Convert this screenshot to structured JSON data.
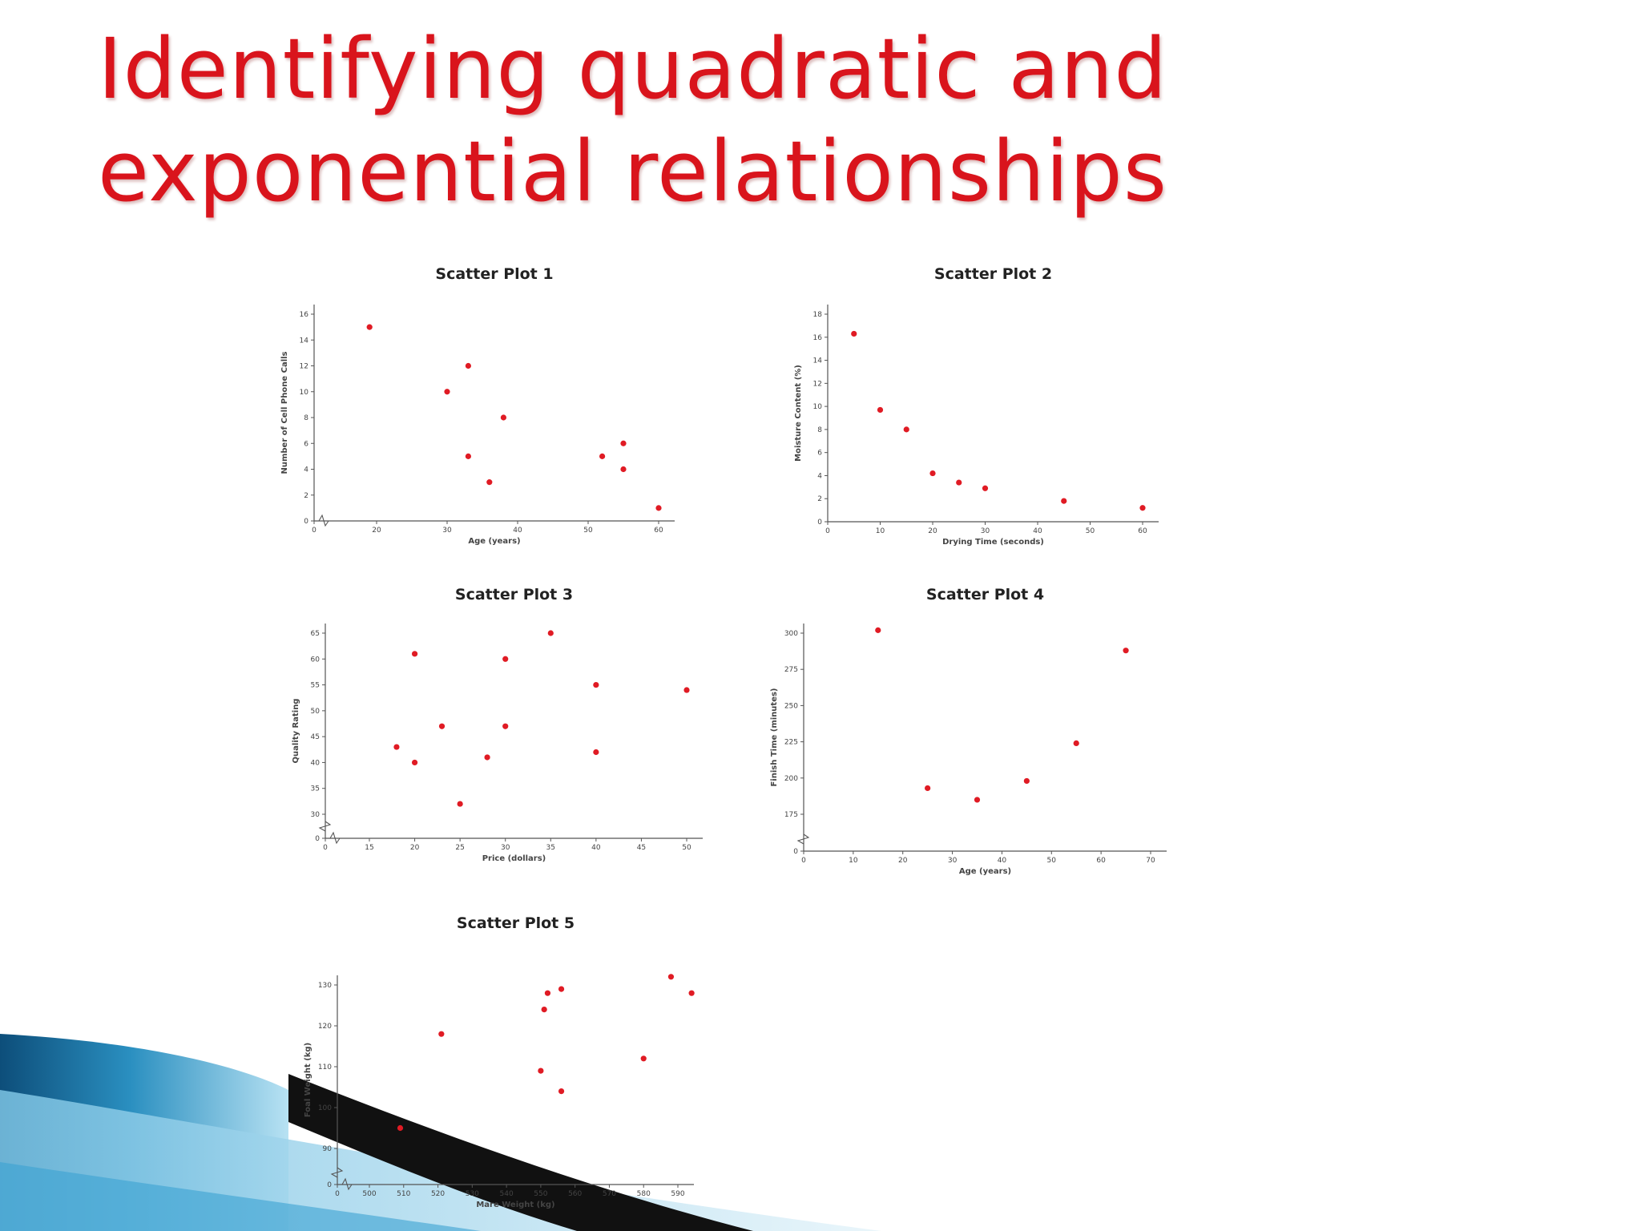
{
  "slide": {
    "title_line1": "Identifying quadratic and",
    "title_line2": "exponential relationships",
    "title_color": "#d9141c",
    "point_color": "#e01b24"
  },
  "chart_data": [
    {
      "type": "scatter",
      "title": "Scatter Plot 1",
      "xlabel": "Age (years)",
      "ylabel": "Number of Cell Phone Calls",
      "xlim": [
        0,
        60
      ],
      "ylim": [
        0,
        16
      ],
      "xticks": [
        0,
        20,
        30,
        40,
        50,
        60
      ],
      "yticks": [
        0,
        2,
        4,
        6,
        8,
        10,
        12,
        14,
        16
      ],
      "axis_break_x": true,
      "x": [
        19,
        30,
        33,
        33,
        36,
        38,
        52,
        55,
        55,
        60
      ],
      "y": [
        15,
        10,
        12,
        5,
        3,
        8,
        5,
        6,
        4,
        1
      ]
    },
    {
      "type": "scatter",
      "title": "Scatter Plot 2",
      "xlabel": "Drying Time (seconds)",
      "ylabel": "Moisture Content (%)",
      "xlim": [
        0,
        60
      ],
      "ylim": [
        0,
        18
      ],
      "xticks": [
        0,
        10,
        20,
        30,
        40,
        50,
        60
      ],
      "yticks": [
        0,
        2,
        4,
        6,
        8,
        10,
        12,
        14,
        16,
        18
      ],
      "axis_break_x": false,
      "x": [
        5,
        10,
        15,
        20,
        25,
        30,
        45,
        60
      ],
      "y": [
        16.3,
        9.7,
        8,
        4.2,
        3.4,
        2.9,
        1.8,
        1.2
      ]
    },
    {
      "type": "scatter",
      "title": "Scatter Plot 3",
      "xlabel": "Price (dollars)",
      "ylabel": "Quality Rating",
      "xlim": [
        10,
        50
      ],
      "ylim": [
        25,
        65
      ],
      "xticks": [
        0,
        15,
        20,
        25,
        30,
        35,
        40,
        45,
        50
      ],
      "yticks": [
        0,
        30,
        35,
        40,
        45,
        50,
        55,
        60,
        65
      ],
      "axis_break_x": true,
      "axis_break_y": true,
      "x": [
        18,
        20,
        20,
        23,
        25,
        28,
        30,
        30,
        35,
        40,
        40,
        50
      ],
      "y": [
        43,
        40,
        61,
        47,
        32,
        41,
        47,
        60,
        65,
        55,
        42,
        54
      ]
    },
    {
      "type": "scatter",
      "title": "Scatter Plot 4",
      "xlabel": "Age (years)",
      "ylabel": "Finish Time (minutes)",
      "xlim": [
        0,
        70
      ],
      "ylim": [
        150,
        300
      ],
      "xticks": [
        0,
        10,
        20,
        30,
        40,
        50,
        60,
        70
      ],
      "yticks": [
        0,
        175,
        200,
        225,
        250,
        275,
        300
      ],
      "axis_break_y": true,
      "x": [
        15,
        25,
        35,
        45,
        55,
        65
      ],
      "y": [
        302,
        193,
        185,
        198,
        224,
        288
      ]
    },
    {
      "type": "scatter",
      "title": "Scatter Plot 5",
      "xlabel": "Mare Weight (kg)",
      "ylabel": "Foal Weight (kg)",
      "xlim": [
        495,
        600
      ],
      "ylim": [
        80,
        135
      ],
      "xticks": [
        0,
        500,
        510,
        520,
        530,
        540,
        550,
        560,
        570,
        580,
        590
      ],
      "yticks": [
        0,
        90,
        100,
        110,
        120,
        130
      ],
      "axis_break_x": true,
      "axis_break_y": true,
      "x": [
        509,
        521,
        550,
        551,
        552,
        556,
        556,
        580,
        588,
        594
      ],
      "y": [
        95,
        118,
        109,
        124,
        128,
        129,
        104,
        112,
        132,
        128
      ]
    }
  ]
}
